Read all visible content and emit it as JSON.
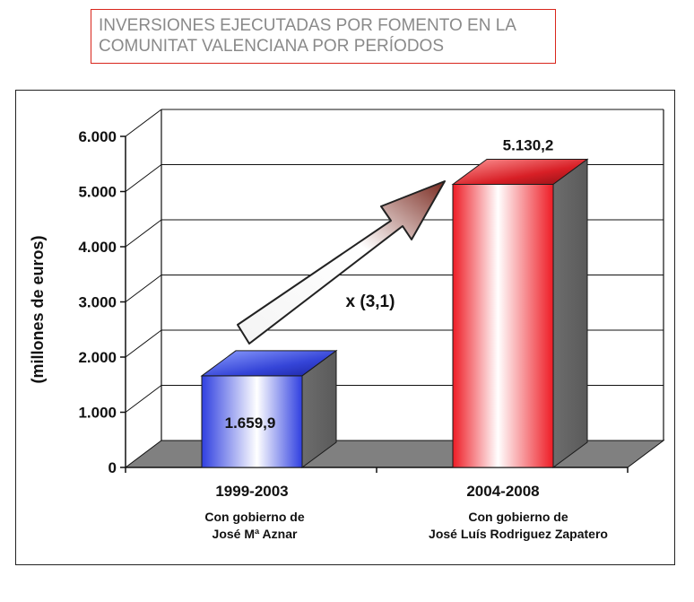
{
  "title": {
    "line1": "INVERSIONES EJECUTADAS POR FOMENTO EN LA",
    "line2": "COMUNITAT VALENCIANA POR PERÍODOS"
  },
  "colors": {
    "title_border": "#d9261c",
    "title_text": "#8a8a8a",
    "bar_blue": "#2f3fe0",
    "bar_red": "#ee1c25",
    "floor": "#808080"
  },
  "chart_data": {
    "type": "bar",
    "title": "INVERSIONES EJECUTADAS POR FOMENTO EN LA COMUNITAT VALENCIANA POR PERÍODOS",
    "ylabel": "(millones de euros)",
    "xlabel": "",
    "ylim": [
      0,
      6000
    ],
    "yticks": [
      0,
      1000,
      2000,
      3000,
      4000,
      5000,
      6000
    ],
    "ytick_labels": [
      "0",
      "1.000",
      "2.000",
      "3.000",
      "4.000",
      "5.000",
      "6.000"
    ],
    "categories": [
      "1999-2003",
      "2004-2008"
    ],
    "values": [
      1659.9,
      5130.2
    ],
    "value_labels": [
      "1.659,9",
      "5.130,2"
    ],
    "subtitles": [
      [
        "Con gobierno de",
        "José Mª Aznar"
      ],
      [
        "Con gobierno de",
        "José Luís Rodriguez Zapatero"
      ]
    ],
    "annotation": "x (3,1)",
    "grid": true
  }
}
